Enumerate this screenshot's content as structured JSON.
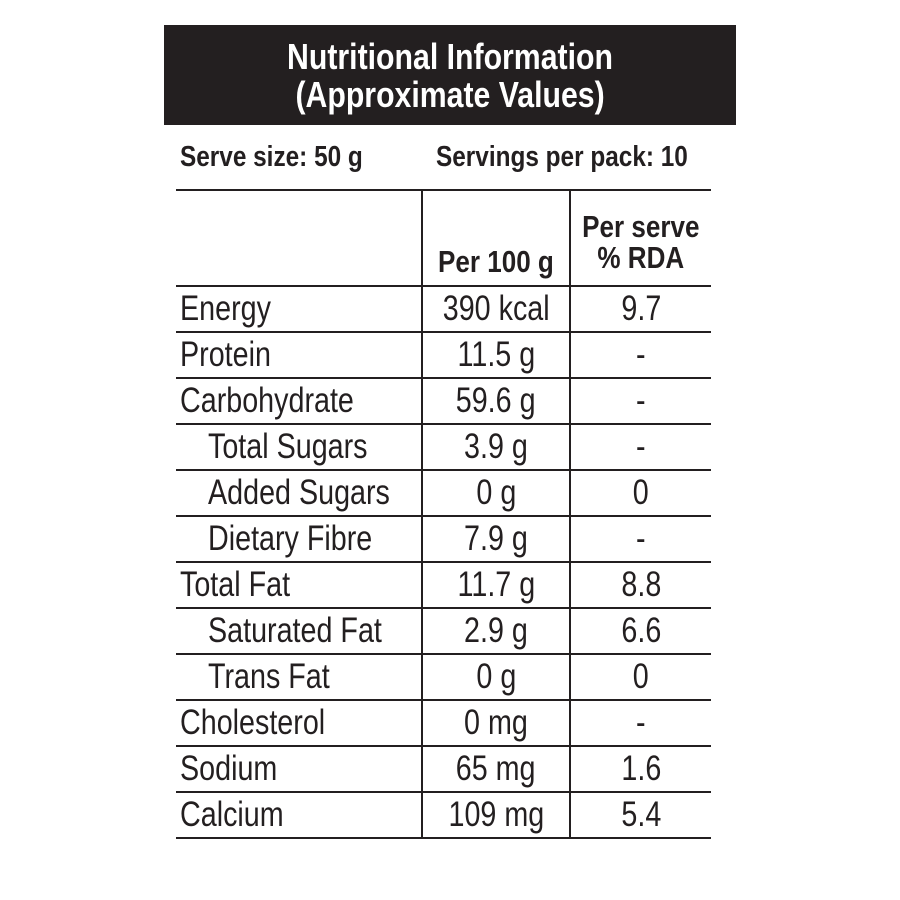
{
  "header": {
    "title_line1": "Nutritional Information",
    "title_line2": "(Approximate Values)"
  },
  "serving": {
    "serve_size": "Serve size: 50 g",
    "servings_per_pack": "Servings per pack: 10"
  },
  "table": {
    "col_per100": "Per 100 g",
    "col_perserve_line1": "Per serve",
    "col_perserve_line2": "% RDA",
    "rows": [
      {
        "name": "Energy",
        "per100": "390 kcal",
        "rda": "9.7"
      },
      {
        "name": "Protein",
        "per100": "11.5 g",
        "rda": "-"
      },
      {
        "name": "Carbohydrate",
        "per100": "59.6 g",
        "rda": "-"
      },
      {
        "name": "Total Sugars",
        "per100": "3.9 g",
        "rda": "-"
      },
      {
        "name": "Added Sugars",
        "per100": "0 g",
        "rda": "0"
      },
      {
        "name": "Dietary Fibre",
        "per100": "7.9 g",
        "rda": "-"
      },
      {
        "name": "Total Fat",
        "per100": "11.7 g",
        "rda": "8.8"
      },
      {
        "name": "Saturated Fat",
        "per100": "2.9 g",
        "rda": "6.6"
      },
      {
        "name": "Trans Fat",
        "per100": "0 g",
        "rda": "0"
      },
      {
        "name": "Cholesterol",
        "per100": "0 mg",
        "rda": "-"
      },
      {
        "name": "Sodium",
        "per100": "65 mg",
        "rda": "1.6"
      },
      {
        "name": "Calcium",
        "per100": "109 mg",
        "rda": "5.4"
      }
    ]
  },
  "colors": {
    "ink": "#231f20",
    "background": "#ffffff"
  }
}
